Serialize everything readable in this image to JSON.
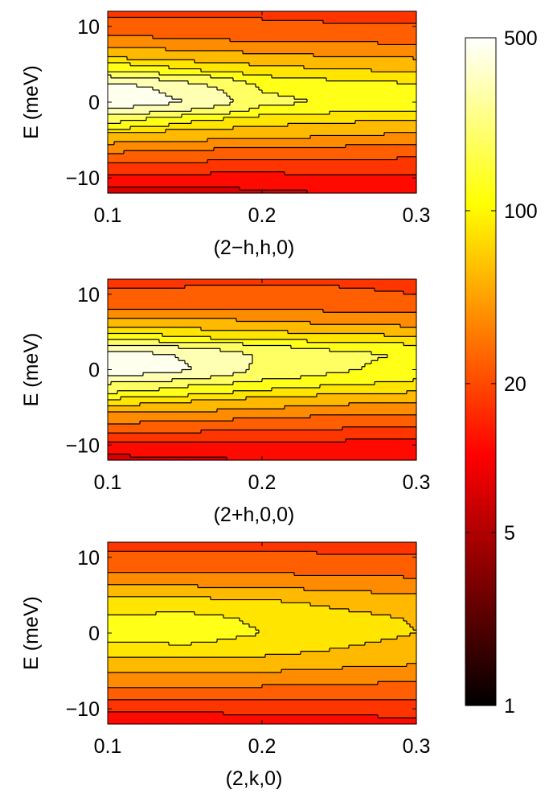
{
  "colors": {
    "colormap": "hot",
    "contour_line": "#000000",
    "axis": "#000000"
  },
  "chart_data": [
    {
      "type": "heatmap",
      "subtype": "filled-contour",
      "xlabel": "(2−h,h,0)",
      "ylabel": "E (meV)",
      "xlim": [
        0.1,
        0.3
      ],
      "ylim": [
        -12,
        12
      ],
      "x_ticks": [
        "0.1",
        "0.2",
        "0.3"
      ],
      "y_ticks": [
        "−10",
        "0",
        "10"
      ],
      "x": [
        0.1,
        0.15,
        0.2,
        0.25,
        0.3
      ],
      "y": [
        -12,
        -10,
        -8,
        -6,
        -4,
        -2,
        0,
        2,
        4,
        6,
        8,
        10,
        12
      ],
      "values": [
        [
          6,
          7,
          8,
          9,
          10
        ],
        [
          12,
          12,
          12,
          13,
          13
        ],
        [
          20,
          19,
          18,
          18,
          17
        ],
        [
          35,
          32,
          30,
          28,
          26
        ],
        [
          70,
          60,
          55,
          50,
          45
        ],
        [
          200,
          120,
          90,
          80,
          75
        ],
        [
          550,
          400,
          170,
          140,
          150
        ],
        [
          500,
          320,
          140,
          120,
          110
        ],
        [
          150,
          110,
          85,
          75,
          70
        ],
        [
          65,
          55,
          50,
          45,
          42
        ],
        [
          34,
          32,
          30,
          29,
          28
        ],
        [
          24,
          23,
          22,
          21,
          21
        ],
        [
          18,
          18,
          18,
          17,
          17
        ]
      ]
    },
    {
      "type": "heatmap",
      "subtype": "filled-contour",
      "xlabel": "(2+h,0,0)",
      "ylabel": "E (meV)",
      "xlim": [
        0.1,
        0.3
      ],
      "ylim": [
        -12,
        12
      ],
      "x_ticks": [
        "0.1",
        "0.2",
        "0.3"
      ],
      "y_ticks": [
        "−10",
        "0",
        "10"
      ],
      "x": [
        0.1,
        0.15,
        0.2,
        0.25,
        0.3
      ],
      "y": [
        -12,
        -10,
        -8,
        -6,
        -4,
        -2,
        0,
        2,
        4,
        6,
        8,
        10,
        12
      ],
      "values": [
        [
          7,
          8,
          9,
          10,
          11
        ],
        [
          13,
          13,
          13,
          12,
          11
        ],
        [
          22,
          21,
          20,
          19,
          17
        ],
        [
          40,
          36,
          33,
          30,
          28
        ],
        [
          90,
          75,
          60,
          52,
          48
        ],
        [
          220,
          160,
          120,
          100,
          90
        ],
        [
          550,
          420,
          220,
          160,
          120
        ],
        [
          500,
          380,
          230,
          170,
          140
        ],
        [
          140,
          110,
          95,
          85,
          80
        ],
        [
          60,
          55,
          50,
          45,
          40
        ],
        [
          30,
          30,
          29,
          28,
          26
        ],
        [
          22,
          22,
          23,
          22,
          20
        ],
        [
          17,
          18,
          18,
          18,
          17
        ]
      ]
    },
    {
      "type": "heatmap",
      "subtype": "filled-contour",
      "xlabel": "(2,k,0)",
      "ylabel": "E (meV)",
      "xlim": [
        0.1,
        0.3
      ],
      "ylim": [
        -12,
        12
      ],
      "x_ticks": [
        "0.1",
        "0.2",
        "0.3"
      ],
      "y_ticks": [
        "−10",
        "0",
        "10"
      ],
      "x": [
        0.1,
        0.15,
        0.2,
        0.25,
        0.3
      ],
      "y": [
        -12,
        -10,
        -8,
        -6,
        -4,
        -2,
        0,
        2,
        4,
        6,
        8,
        10,
        12
      ],
      "values": [
        [
          10,
          10,
          11,
          11,
          12
        ],
        [
          15,
          15,
          16,
          16,
          17
        ],
        [
          24,
          24,
          24,
          23,
          23
        ],
        [
          38,
          37,
          36,
          34,
          32
        ],
        [
          60,
          58,
          56,
          50,
          46
        ],
        [
          90,
          95,
          85,
          70,
          62
        ],
        [
          110,
          115,
          100,
          80,
          70
        ],
        [
          105,
          110,
          95,
          78,
          68
        ],
        [
          80,
          82,
          76,
          64,
          56
        ],
        [
          48,
          47,
          45,
          40,
          36
        ],
        [
          30,
          30,
          29,
          28,
          27
        ],
        [
          22,
          22,
          22,
          21,
          21
        ],
        [
          17,
          17,
          17,
          17,
          17
        ]
      ]
    }
  ],
  "colorbar": {
    "scale": "log",
    "range": [
      1,
      500
    ],
    "ticks": [
      {
        "value": 1,
        "label": "1"
      },
      {
        "value": 5,
        "label": "5"
      },
      {
        "value": 20,
        "label": "20"
      },
      {
        "value": 100,
        "label": "100"
      },
      {
        "value": 500,
        "label": "500"
      }
    ]
  }
}
